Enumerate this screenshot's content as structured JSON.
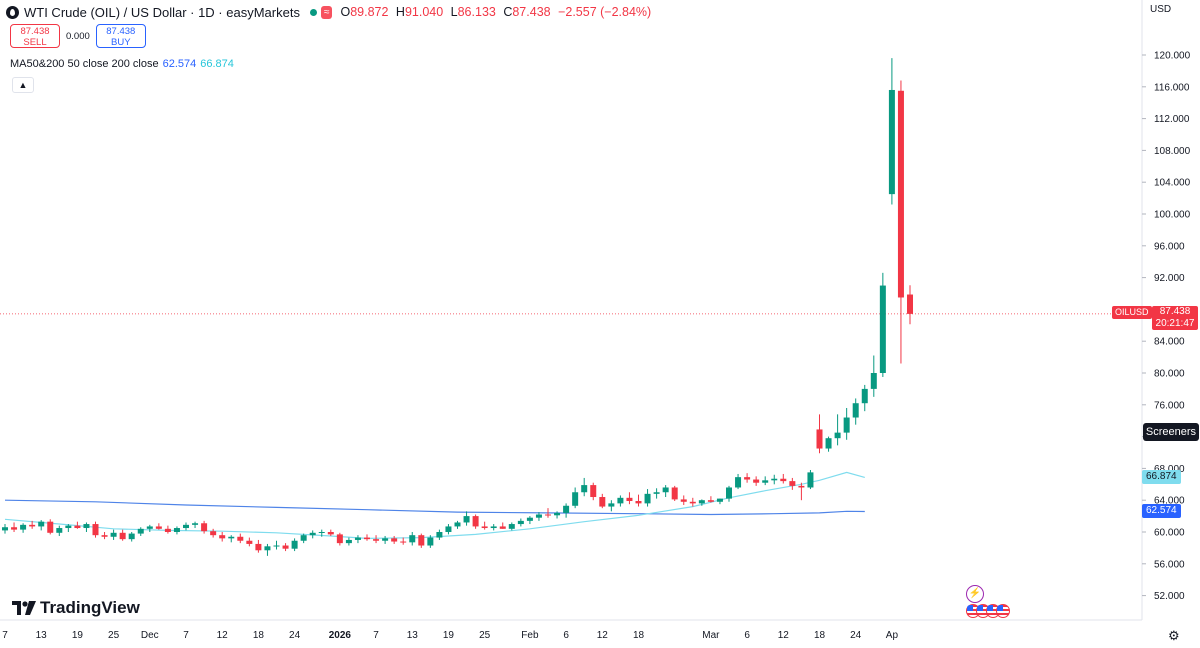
{
  "header": {
    "title": "WTI Crude (OIL) / US Dollar · 1D · easyMarkets",
    "wave_badge": "≈",
    "ohlc": {
      "o_label": "O",
      "o": "89.872",
      "h_label": "H",
      "h": "91.040",
      "l_label": "L",
      "l": "86.133",
      "c_label": "C",
      "c": "87.438",
      "change": "−2.557 (−2.84%)"
    }
  },
  "trade": {
    "sell_price": "87.438",
    "sell_label": "SELL",
    "spread": "0.000",
    "buy_price": "87.438",
    "buy_label": "BUY"
  },
  "indicator": {
    "label": "MA50&200 50 close 200 close",
    "ma50": "62.574",
    "ma200": "66.874"
  },
  "currency": "USD",
  "price_tag": {
    "symbol": "OILUSD",
    "price": "87.438",
    "countdown": "20:21:47"
  },
  "ma_tags": {
    "upper": "66.874",
    "lower": "62.574"
  },
  "screeners_label": "Screeners",
  "logo_text": "TradingView",
  "colors": {
    "up": "#089981",
    "down": "#f23645",
    "ma_a": "#4f84e8",
    "ma_b": "#7fdcee",
    "price_line": "#f23645"
  },
  "chart_data": {
    "type": "candlestick",
    "y_ticks": [
      "120.000",
      "116.000",
      "112.000",
      "108.000",
      "104.000",
      "100.000",
      "96.000",
      "92.000",
      "88.000",
      "84.000",
      "80.000",
      "76.000",
      "72.000",
      "68.000",
      "64.000",
      "60.000",
      "56.000",
      "52.000"
    ],
    "ylim": [
      50,
      124
    ],
    "x_ticks": [
      {
        "label": "7",
        "i": 0
      },
      {
        "label": "13",
        "i": 4
      },
      {
        "label": "19",
        "i": 8
      },
      {
        "label": "25",
        "i": 12
      },
      {
        "label": "Dec",
        "i": 16
      },
      {
        "label": "7",
        "i": 20
      },
      {
        "label": "12",
        "i": 24
      },
      {
        "label": "18",
        "i": 28
      },
      {
        "label": "24",
        "i": 32
      },
      {
        "label": "2026",
        "i": 37
      },
      {
        "label": "7",
        "i": 41
      },
      {
        "label": "13",
        "i": 45
      },
      {
        "label": "19",
        "i": 49
      },
      {
        "label": "25",
        "i": 53
      },
      {
        "label": "Feb",
        "i": 58
      },
      {
        "label": "6",
        "i": 62
      },
      {
        "label": "12",
        "i": 66
      },
      {
        "label": "18",
        "i": 70
      },
      {
        "label": "Mar",
        "i": 78
      },
      {
        "label": "6",
        "i": 82
      },
      {
        "label": "12",
        "i": 86
      },
      {
        "label": "18",
        "i": 90
      },
      {
        "label": "24",
        "i": 94
      },
      {
        "label": "Ap",
        "i": 98
      }
    ],
    "candles": [
      [
        60.2,
        61.0,
        59.8,
        60.6
      ],
      [
        60.6,
        61.2,
        60.0,
        60.3
      ],
      [
        60.3,
        61.1,
        59.9,
        60.9
      ],
      [
        60.9,
        61.4,
        60.4,
        60.7
      ],
      [
        60.7,
        61.5,
        60.2,
        61.3
      ],
      [
        61.3,
        61.6,
        59.7,
        59.9
      ],
      [
        59.9,
        60.8,
        59.5,
        60.5
      ],
      [
        60.5,
        61.0,
        60.0,
        60.8
      ],
      [
        60.8,
        61.3,
        60.4,
        60.5
      ],
      [
        60.5,
        61.2,
        60.0,
        61.0
      ],
      [
        61.0,
        61.3,
        59.3,
        59.6
      ],
      [
        59.6,
        60.0,
        59.1,
        59.4
      ],
      [
        59.4,
        60.3,
        59.0,
        59.9
      ],
      [
        59.9,
        60.3,
        58.9,
        59.1
      ],
      [
        59.1,
        60.0,
        58.8,
        59.8
      ],
      [
        59.8,
        60.6,
        59.5,
        60.4
      ],
      [
        60.4,
        60.9,
        60.0,
        60.7
      ],
      [
        60.7,
        61.1,
        60.3,
        60.4
      ],
      [
        60.4,
        60.8,
        59.8,
        60.0
      ],
      [
        60.0,
        60.7,
        59.7,
        60.5
      ],
      [
        60.5,
        61.2,
        60.2,
        60.9
      ],
      [
        60.9,
        61.3,
        60.5,
        61.1
      ],
      [
        61.1,
        61.4,
        59.8,
        60.1
      ],
      [
        60.1,
        60.4,
        59.3,
        59.6
      ],
      [
        59.6,
        60.0,
        58.8,
        59.2
      ],
      [
        59.2,
        59.6,
        58.7,
        59.4
      ],
      [
        59.4,
        59.8,
        58.6,
        58.9
      ],
      [
        58.9,
        59.3,
        58.2,
        58.5
      ],
      [
        58.5,
        59.0,
        57.4,
        57.7
      ],
      [
        57.7,
        58.5,
        57.0,
        58.2
      ],
      [
        58.2,
        58.9,
        57.8,
        58.3
      ],
      [
        58.3,
        58.6,
        57.6,
        57.9
      ],
      [
        57.9,
        59.2,
        57.6,
        58.9
      ],
      [
        58.9,
        59.8,
        58.6,
        59.6
      ],
      [
        59.6,
        60.2,
        59.2,
        59.9
      ],
      [
        59.9,
        60.3,
        59.4,
        60.0
      ],
      [
        60.0,
        60.3,
        59.5,
        59.7
      ],
      [
        59.7,
        59.9,
        58.3,
        58.6
      ],
      [
        58.6,
        59.3,
        58.3,
        59.0
      ],
      [
        59.0,
        59.6,
        58.6,
        59.3
      ],
      [
        59.3,
        59.7,
        58.9,
        59.1
      ],
      [
        59.1,
        59.6,
        58.6,
        58.9
      ],
      [
        58.9,
        59.5,
        58.5,
        59.2
      ],
      [
        59.2,
        59.5,
        58.5,
        58.8
      ],
      [
        58.8,
        59.3,
        58.4,
        58.7
      ],
      [
        58.7,
        60.0,
        58.3,
        59.6
      ],
      [
        59.6,
        59.8,
        58.0,
        58.3
      ],
      [
        58.3,
        59.6,
        58.0,
        59.3
      ],
      [
        59.3,
        60.3,
        59.0,
        60.0
      ],
      [
        60.0,
        61.0,
        59.7,
        60.7
      ],
      [
        60.7,
        61.4,
        60.4,
        61.2
      ],
      [
        61.2,
        62.6,
        60.8,
        62.0
      ],
      [
        62.0,
        62.2,
        60.4,
        60.7
      ],
      [
        60.7,
        61.3,
        60.3,
        60.5
      ],
      [
        60.5,
        61.0,
        60.2,
        60.7
      ],
      [
        60.7,
        61.2,
        60.4,
        60.4
      ],
      [
        60.4,
        61.2,
        60.2,
        61.0
      ],
      [
        61.0,
        61.7,
        60.7,
        61.4
      ],
      [
        61.4,
        62.0,
        61.0,
        61.8
      ],
      [
        61.8,
        62.5,
        61.4,
        62.2
      ],
      [
        62.2,
        63.0,
        61.8,
        62.1
      ],
      [
        62.1,
        62.6,
        61.7,
        62.4
      ],
      [
        62.4,
        63.6,
        61.8,
        63.3
      ],
      [
        63.3,
        65.6,
        63.0,
        65.0
      ],
      [
        65.0,
        66.8,
        64.5,
        65.9
      ],
      [
        65.9,
        66.2,
        64.0,
        64.4
      ],
      [
        64.4,
        64.8,
        63.0,
        63.2
      ],
      [
        63.2,
        64.0,
        62.6,
        63.6
      ],
      [
        63.6,
        64.6,
        63.2,
        64.3
      ],
      [
        64.3,
        65.0,
        63.5,
        63.9
      ],
      [
        63.9,
        64.7,
        63.2,
        63.6
      ],
      [
        63.6,
        65.4,
        63.2,
        64.8
      ],
      [
        64.8,
        65.5,
        64.2,
        65.0
      ],
      [
        65.0,
        65.9,
        64.4,
        65.6
      ],
      [
        65.6,
        65.8,
        63.9,
        64.1
      ],
      [
        64.1,
        64.6,
        63.4,
        63.8
      ],
      [
        63.8,
        64.3,
        63.2,
        63.6
      ],
      [
        63.6,
        64.1,
        63.3,
        64.0
      ],
      [
        64.0,
        64.5,
        63.7,
        63.8
      ],
      [
        63.8,
        64.2,
        63.5,
        64.2
      ],
      [
        64.2,
        65.8,
        63.8,
        65.6
      ],
      [
        65.6,
        67.3,
        65.4,
        66.9
      ],
      [
        66.9,
        67.4,
        66.2,
        66.6
      ],
      [
        66.6,
        67.0,
        65.8,
        66.2
      ],
      [
        66.2,
        67.0,
        65.9,
        66.5
      ],
      [
        66.5,
        67.2,
        66.0,
        66.7
      ],
      [
        66.7,
        67.3,
        66.1,
        66.4
      ],
      [
        66.4,
        66.8,
        65.3,
        65.8
      ],
      [
        65.8,
        66.2,
        64.0,
        65.6
      ],
      [
        65.6,
        67.8,
        65.4,
        67.5
      ],
      [
        72.9,
        74.8,
        69.9,
        70.5
      ],
      [
        70.5,
        72.0,
        70.1,
        71.8
      ],
      [
        71.8,
        74.8,
        70.9,
        72.5
      ],
      [
        72.5,
        75.6,
        71.6,
        74.4
      ],
      [
        74.4,
        76.8,
        73.5,
        76.2
      ],
      [
        76.2,
        78.5,
        75.2,
        78.0
      ],
      [
        78.0,
        82.2,
        77.0,
        80.0
      ],
      [
        80.0,
        92.6,
        79.5,
        91.0
      ],
      [
        102.5,
        119.6,
        101.2,
        115.6
      ],
      [
        115.5,
        116.8,
        81.2,
        89.5
      ],
      [
        89.872,
        91.04,
        86.133,
        87.438
      ]
    ],
    "ma_a": [
      [
        0,
        64.0
      ],
      [
        10,
        63.8
      ],
      [
        20,
        63.4
      ],
      [
        30,
        63.1
      ],
      [
        40,
        62.8
      ],
      [
        50,
        62.5
      ],
      [
        60,
        62.4
      ],
      [
        70,
        62.3
      ],
      [
        78,
        62.2
      ],
      [
        85,
        62.3
      ],
      [
        90,
        62.4
      ],
      [
        93,
        62.6
      ],
      [
        95,
        62.574
      ]
    ],
    "ma_b": [
      [
        0,
        61.6
      ],
      [
        6,
        61.0
      ],
      [
        12,
        60.4
      ],
      [
        18,
        60.2
      ],
      [
        24,
        60.1
      ],
      [
        30,
        59.9
      ],
      [
        36,
        59.5
      ],
      [
        40,
        59.2
      ],
      [
        46,
        59.3
      ],
      [
        52,
        59.7
      ],
      [
        58,
        60.4
      ],
      [
        64,
        61.3
      ],
      [
        70,
        62.1
      ],
      [
        76,
        63.2
      ],
      [
        80,
        64.3
      ],
      [
        84,
        65.2
      ],
      [
        88,
        66.0
      ],
      [
        90,
        66.5
      ],
      [
        93,
        67.5
      ],
      [
        95,
        66.874
      ]
    ]
  }
}
